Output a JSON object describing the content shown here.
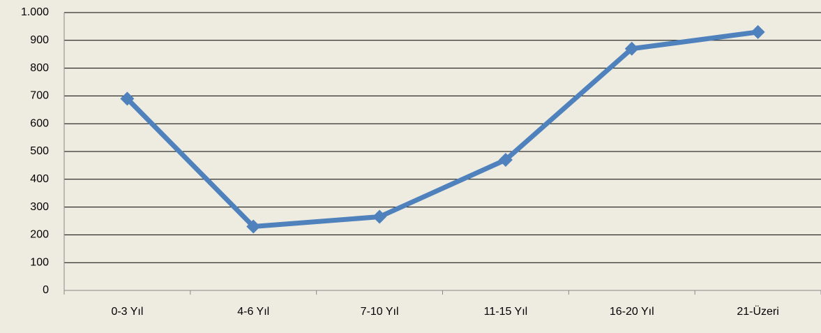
{
  "chart_data": {
    "type": "line",
    "categories": [
      "0-3 Yıl",
      "4-6 Yıl",
      "7-10 Yıl",
      "11-15 Yıl",
      "16-20 Yıl",
      "21-Üzeri"
    ],
    "series": [
      {
        "name": null,
        "color": "#4f81bd",
        "values": [
          690,
          230,
          265,
          470,
          870,
          930
        ]
      }
    ],
    "ylim": [
      0,
      1000
    ],
    "yticks": [
      0,
      100,
      200,
      300,
      400,
      500,
      600,
      700,
      800,
      900,
      {
        "value": 1000,
        "label": "1.000"
      }
    ],
    "grid": true,
    "legend": false
  }
}
